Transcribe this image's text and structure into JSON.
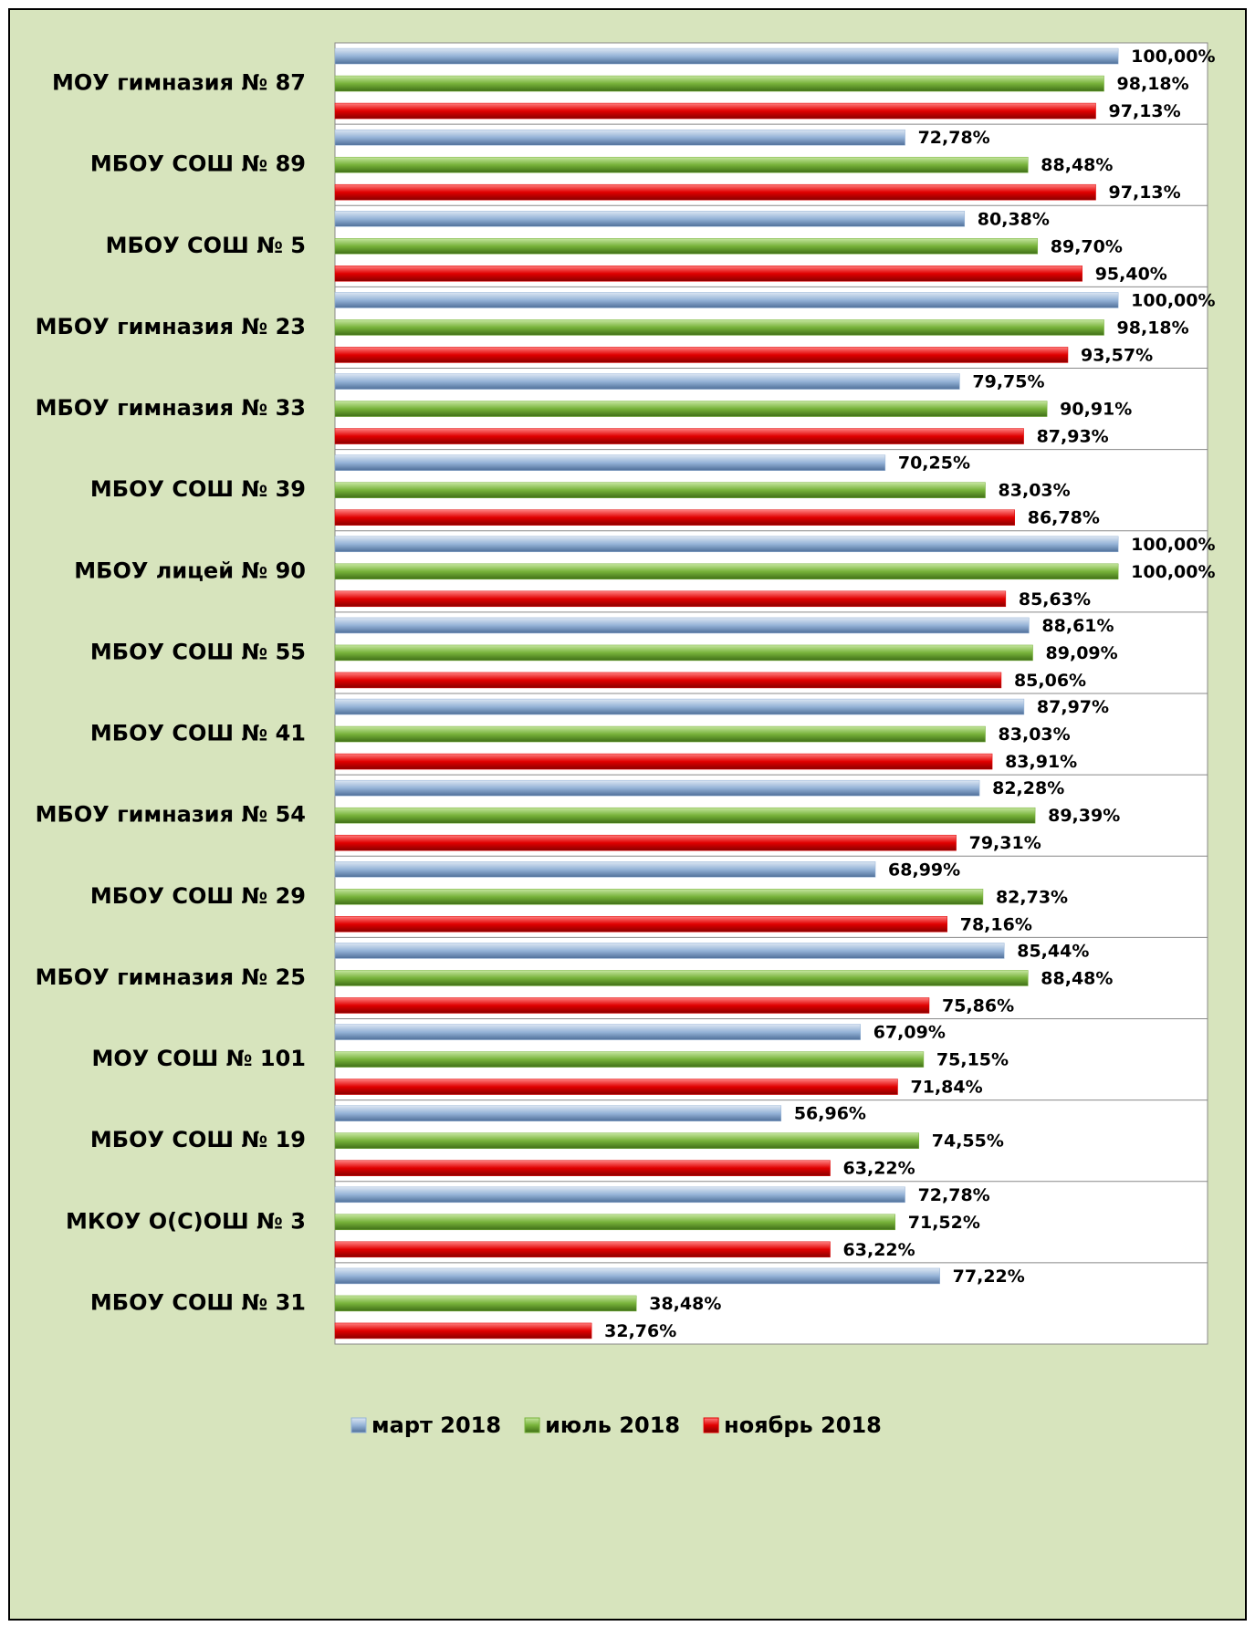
{
  "chart_data": {
    "type": "bar",
    "orientation": "horizontal",
    "categories": [
      "МОУ гимназия № 87",
      "МБОУ СОШ № 89",
      "МБОУ СОШ № 5",
      "МБОУ гимназия № 23",
      "МБОУ гимназия № 33",
      "МБОУ СОШ № 39",
      "МБОУ лицей № 90",
      "МБОУ СОШ № 55",
      "МБОУ СОШ № 41",
      "МБОУ гимназия № 54",
      "МБОУ СОШ № 29",
      "МБОУ гимназия № 25",
      "МОУ СОШ № 101",
      "МБОУ СОШ № 19",
      "МКОУ О(С)ОШ № 3",
      "МБОУ СОШ № 31"
    ],
    "series": [
      {
        "name": "март 2018",
        "color": "#95b3d7",
        "values": [
          100,
          72.78,
          80.38,
          100,
          79.75,
          70.25,
          100,
          88.61,
          87.97,
          82.28,
          68.99,
          85.44,
          67.09,
          56.96,
          72.78,
          77.22
        ],
        "value_labels": [
          "100,00%",
          "72,78%",
          "80,38%",
          "100,00%",
          "79,75%",
          "70,25%",
          "100,00%",
          "88,61%",
          "87,97%",
          "82,28%",
          "68,99%",
          "85,44%",
          "67,09%",
          "56,96%",
          "72,78%",
          "77,22%"
        ]
      },
      {
        "name": "июль 2018",
        "color": "#77b23a",
        "values": [
          98.18,
          88.48,
          89.7,
          98.18,
          90.91,
          83.03,
          100,
          89.09,
          83.03,
          89.39,
          82.73,
          88.48,
          75.15,
          74.55,
          71.52,
          38.48
        ],
        "value_labels": [
          "98,18%",
          "88,48%",
          "89,70%",
          "98,18%",
          "90,91%",
          "83,03%",
          "100,00%",
          "89,09%",
          "83,03%",
          "89,39%",
          "82,73%",
          "88,48%",
          "75,15%",
          "74,55%",
          "71,52%",
          "38,48%"
        ]
      },
      {
        "name": "ноябрь 2018",
        "color": "#e00000",
        "values": [
          97.13,
          97.13,
          95.4,
          93.57,
          87.93,
          86.78,
          85.63,
          85.06,
          83.91,
          79.31,
          78.16,
          75.86,
          71.84,
          63.22,
          63.22,
          32.76
        ],
        "value_labels": [
          "97,13%",
          "97,13%",
          "95,40%",
          "93,57%",
          "87,93%",
          "86,78%",
          "85,63%",
          "85,06%",
          "83,91%",
          "79,31%",
          "78,16%",
          "75,86%",
          "71,84%",
          "63,22%",
          "63,22%",
          "32,76%"
        ]
      }
    ],
    "xlim": [
      0,
      111.4
    ],
    "legend": "bottom"
  }
}
